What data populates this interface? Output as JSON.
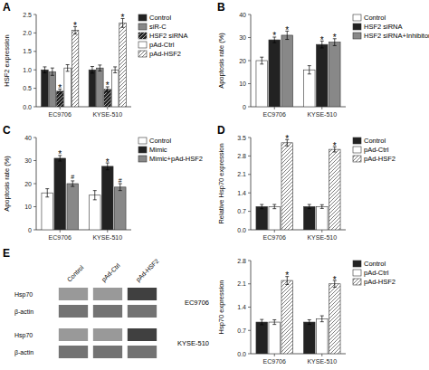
{
  "chart_data": [
    {
      "type": "bar",
      "title": "A",
      "ylabel": "HSF2 expression",
      "categories": [
        "EC9706",
        "KYSE-510"
      ],
      "series": [
        {
          "name": "Control",
          "color": "#222222",
          "values": [
            1.0,
            1.0
          ],
          "errors": [
            0.08,
            0.09
          ]
        },
        {
          "name": "siR-C",
          "color": "#888888",
          "values": [
            0.95,
            1.05
          ],
          "errors": [
            0.1,
            0.08
          ]
        },
        {
          "name": "HSF2 siRNA",
          "color": "#222222",
          "line_style": "hatch",
          "values": [
            0.42,
            0.47
          ],
          "errors": [
            0.06,
            0.07
          ]
        },
        {
          "name": "pAd-Ctrl",
          "color": "#ffffff",
          "values": [
            1.05,
            1.0
          ],
          "errors": [
            0.09,
            0.08
          ]
        },
        {
          "name": "pAd-HSF2",
          "color": "#ffffff",
          "line_style": "hatch",
          "values": [
            2.07,
            2.27
          ],
          "errors": [
            0.1,
            0.12
          ]
        }
      ],
      "annotations": [
        {
          "text": "*",
          "category": 0,
          "series": 2
        },
        {
          "text": "*",
          "category": 0,
          "series": 4
        },
        {
          "text": "*",
          "category": 1,
          "series": 2
        },
        {
          "text": "*",
          "category": 1,
          "series": 4
        }
      ],
      "ylim": [
        0.0,
        2.5
      ],
      "yticks": [
        {
          "value": 0.0,
          "label": "0.0"
        },
        0.5,
        {
          "value": 1.0,
          "label": "1.0"
        },
        1.5,
        {
          "value": 2.0,
          "label": "2.0"
        },
        2.5
      ],
      "legend": "upper right",
      "grid": false
    },
    {
      "type": "bar",
      "title": "B",
      "ylabel": "Apoptosis rate (%)",
      "categories": [
        "EC9706",
        "KYSE-510"
      ],
      "series": [
        {
          "name": "Control",
          "color": "#ffffff",
          "values": [
            20.0,
            16.0
          ],
          "errors": [
            1.5,
            1.8
          ]
        },
        {
          "name": "HSF2 siRNA",
          "color": "#222222",
          "values": [
            29.0,
            27.0
          ],
          "errors": [
            1.2,
            1.5
          ]
        },
        {
          "name": "HSF2 siRNA+Inhibitor",
          "color": "#888888",
          "values": [
            31.0,
            28.0
          ],
          "errors": [
            1.8,
            1.5
          ]
        }
      ],
      "annotations": [
        {
          "text": "*",
          "category": 0,
          "series": 1
        },
        {
          "text": "*",
          "category": 0,
          "series": 2
        },
        {
          "text": "*",
          "category": 1,
          "series": 1
        },
        {
          "text": "*",
          "category": 1,
          "series": 2
        }
      ],
      "ylim": [
        0,
        40
      ],
      "yticks": [
        0,
        10,
        20,
        30,
        40
      ],
      "legend": "upper right",
      "grid": false
    },
    {
      "type": "bar",
      "title": "C",
      "ylabel": "Apoptosis rate (%)",
      "categories": [
        "EC9706",
        "KYSE-510"
      ],
      "series": [
        {
          "name": "Control",
          "color": "#ffffff",
          "values": [
            16.0,
            15.0
          ],
          "errors": [
            1.8,
            2.0
          ]
        },
        {
          "name": "Mimic",
          "color": "#222222",
          "values": [
            31.0,
            27.5
          ],
          "errors": [
            1.2,
            1.5
          ]
        },
        {
          "name": "Mimic+pAd-HSF2",
          "color": "#888888",
          "values": [
            20.0,
            18.5
          ],
          "errors": [
            1.2,
            1.5
          ]
        }
      ],
      "annotations": [
        {
          "text": "*",
          "category": 0,
          "series": 1
        },
        {
          "text": "*",
          "category": 1,
          "series": 1
        },
        {
          "text": "#",
          "category": 0,
          "series": 2
        },
        {
          "text": "#",
          "category": 1,
          "series": 2
        }
      ],
      "ylim": [
        0,
        40
      ],
      "yticks": [
        0,
        10,
        20,
        30,
        40
      ],
      "legend": "upper right",
      "grid": false
    },
    {
      "type": "bar",
      "title": "D",
      "ylabel": "Relative Hsp70 expression",
      "categories": [
        "EC9706",
        "KYSE-510"
      ],
      "series": [
        {
          "name": "Control",
          "color": "#222222",
          "values": [
            0.88,
            0.88
          ],
          "errors": [
            0.08,
            0.08
          ]
        },
        {
          "name": "pAd-Ctrl",
          "color": "#ffffff",
          "values": [
            0.88,
            0.88
          ],
          "errors": [
            0.08,
            0.07
          ]
        },
        {
          "name": "pAd-HSF2",
          "color": "#ffffff",
          "line_style": "hatch",
          "values": [
            3.3,
            3.05
          ],
          "errors": [
            0.12,
            0.1
          ]
        }
      ],
      "annotations": [
        {
          "text": "*",
          "category": 0,
          "series": 2
        },
        {
          "text": "*",
          "category": 1,
          "series": 2
        }
      ],
      "ylim": [
        0.0,
        3.5
      ],
      "yticks": [
        {
          "value": 0.0,
          "label": "0.0"
        },
        0.7,
        1.4,
        2.1,
        2.8,
        3.5
      ],
      "legend": "upper right",
      "grid": false
    },
    {
      "type": "heatmap",
      "title": "E",
      "x": [
        "Control",
        "pAd-Ctrl",
        "pAd-HSF2"
      ],
      "sections": [
        {
          "name": "EC9706",
          "y": [
            "Hsp70",
            "β-actin"
          ],
          "cells": [
            [
              0.6,
              0.6,
              0.25
            ],
            [
              0.45,
              0.45,
              0.45
            ]
          ]
        },
        {
          "name": "KYSE-510",
          "y": [
            "Hsp70",
            "β-actin"
          ],
          "cells": [
            [
              0.6,
              0.6,
              0.25
            ],
            [
              0.45,
              0.45,
              0.45
            ]
          ]
        }
      ]
    },
    {
      "type": "bar",
      "ylabel": "Hsp70 expression",
      "categories": [
        "EC9706",
        "KYSE-510"
      ],
      "series": [
        {
          "name": "Control",
          "color": "#222222",
          "values": [
            0.95,
            0.95
          ],
          "errors": [
            0.08,
            0.07
          ]
        },
        {
          "name": "pAd-Ctrl",
          "color": "#ffffff",
          "values": [
            0.95,
            1.05
          ],
          "errors": [
            0.07,
            0.09
          ]
        },
        {
          "name": "pAd-HSF2",
          "color": "#ffffff",
          "line_style": "hatch",
          "values": [
            2.2,
            2.1
          ],
          "errors": [
            0.12,
            0.1
          ]
        }
      ],
      "annotations": [
        {
          "text": "*",
          "category": 0,
          "series": 2
        },
        {
          "text": "*",
          "category": 1,
          "series": 2
        }
      ],
      "ylim": [
        0.0,
        2.8
      ],
      "yticks": [
        {
          "value": 0.0,
          "label": "0.0"
        },
        0.7,
        1.4,
        2.1,
        2.8
      ],
      "legend": "upper right",
      "grid": false
    }
  ]
}
